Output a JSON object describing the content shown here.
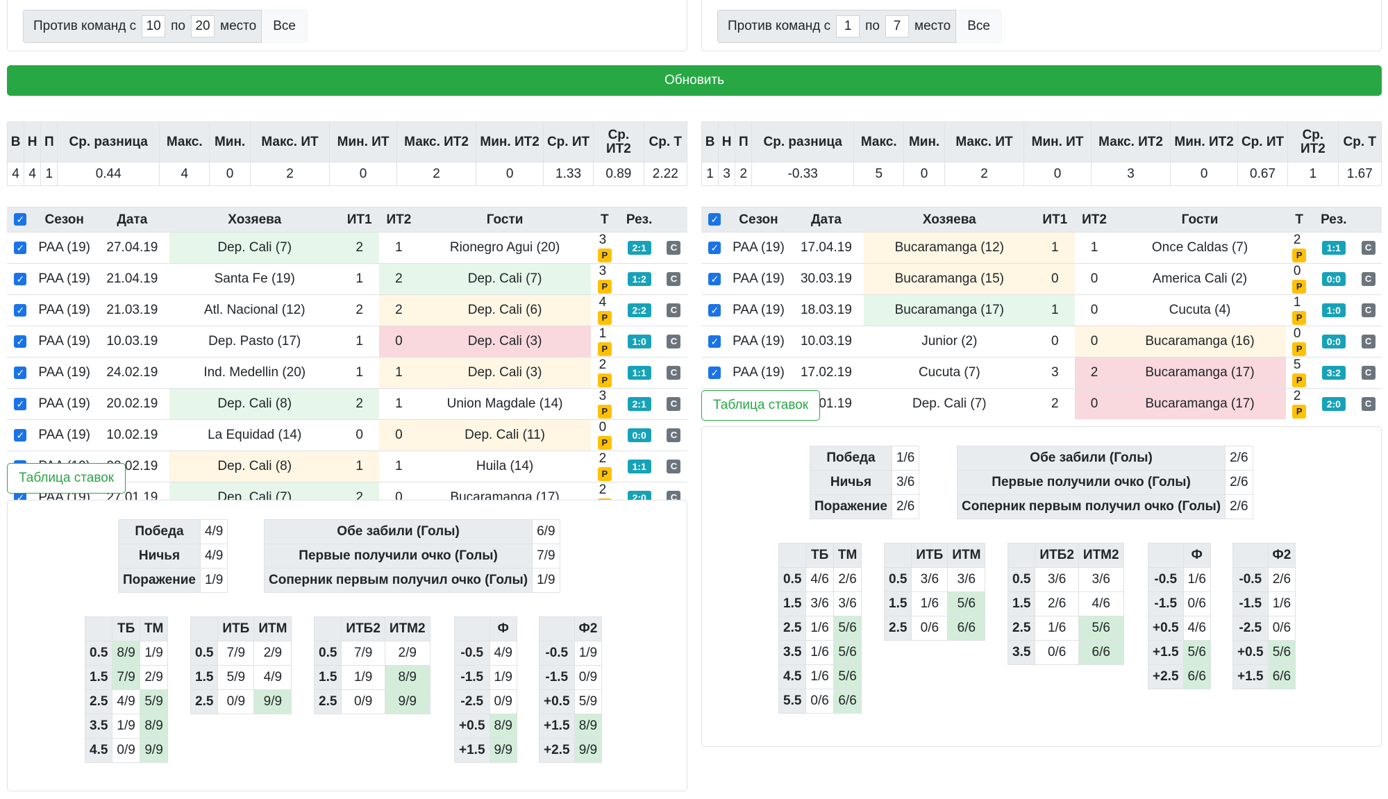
{
  "update_label": "Обновить",
  "bets_label": "Таблица ставок",
  "colors": {
    "green": "#28a745",
    "badge_p": "#ffc107",
    "badge_score": "#17a2b8",
    "badge_c": "#6c757d"
  },
  "stats_headers": [
    "В",
    "Н",
    "П",
    "Ср. разница",
    "Макс.",
    "Мин.",
    "Макс. ИТ",
    "Мин. ИТ",
    "Макс. ИТ2",
    "Мин. ИТ2",
    "Ср. ИТ",
    "Ср. ИТ2",
    "Ср. Т"
  ],
  "match_headers": [
    "",
    "Сезон",
    "Дата",
    "Хозяева",
    "ИТ1",
    "ИТ2",
    "Гости",
    "Т",
    "Рез.",
    ""
  ],
  "results_labels": [
    "Победа",
    "Ничья",
    "Поражение"
  ],
  "goals_labels": [
    "Обе забили (Голы)",
    "Первые получили очко (Голы)",
    "Соперник первым получил очко (Голы)"
  ],
  "left": {
    "filter": {
      "prefix": "Против команд с",
      "from": "10",
      "mid": "по",
      "to": "20",
      "suffix": "место",
      "all": "Все"
    },
    "stats": [
      "4",
      "4",
      "1",
      "0.44",
      "4",
      "0",
      "2",
      "0",
      "2",
      "0",
      "1.33",
      "0.89",
      "2.22"
    ],
    "matches": [
      {
        "season": "PAA (19)",
        "date": "27.04.19",
        "home": "Dep. Cali (7)",
        "it1": "2",
        "it2": "1",
        "away": "Rionegro Agui (20)",
        "t": "3",
        "p": "P",
        "score": "2:1",
        "c": "C",
        "hl": "home",
        "hlc": "hl-green"
      },
      {
        "season": "PAA (19)",
        "date": "21.04.19",
        "home": "Santa Fe (19)",
        "it1": "1",
        "it2": "2",
        "away": "Dep. Cali (7)",
        "t": "3",
        "p": "P",
        "score": "1:2",
        "c": "C",
        "hl": "away",
        "hlc": "hl-green"
      },
      {
        "season": "PAA (19)",
        "date": "21.03.19",
        "home": "Atl. Nacional (12)",
        "it1": "2",
        "it2": "2",
        "away": "Dep. Cali (6)",
        "t": "4",
        "p": "P",
        "score": "2:2",
        "c": "C",
        "hl": "away",
        "hlc": "hl-yellow"
      },
      {
        "season": "PAA (19)",
        "date": "10.03.19",
        "home": "Dep. Pasto (17)",
        "it1": "1",
        "it2": "0",
        "away": "Dep. Cali (3)",
        "t": "1",
        "p": "P",
        "score": "1:0",
        "c": "C",
        "hl": "away",
        "hlc": "hl-red"
      },
      {
        "season": "PAA (19)",
        "date": "24.02.19",
        "home": "Ind. Medellin (20)",
        "it1": "1",
        "it2": "1",
        "away": "Dep. Cali (3)",
        "t": "2",
        "p": "P",
        "score": "1:1",
        "c": "C",
        "hl": "away",
        "hlc": "hl-yellow"
      },
      {
        "season": "PAA (19)",
        "date": "20.02.19",
        "home": "Dep. Cali (8)",
        "it1": "2",
        "it2": "1",
        "away": "Union Magdale (14)",
        "t": "3",
        "p": "P",
        "score": "2:1",
        "c": "C",
        "hl": "home",
        "hlc": "hl-green"
      },
      {
        "season": "PAA (19)",
        "date": "10.02.19",
        "home": "La Equidad (14)",
        "it1": "0",
        "it2": "0",
        "away": "Dep. Cali (11)",
        "t": "0",
        "p": "P",
        "score": "0:0",
        "c": "C",
        "hl": "away",
        "hlc": "hl-yellow"
      },
      {
        "season": "PAA (19)",
        "date": "02.02.19",
        "home": "Dep. Cali (8)",
        "it1": "1",
        "it2": "1",
        "away": "Huila (14)",
        "t": "2",
        "p": "P",
        "score": "1:1",
        "c": "C",
        "hl": "home",
        "hlc": "hl-yellow"
      },
      {
        "season": "PAA (19)",
        "date": "27.01.19",
        "home": "Dep. Cali (7)",
        "it1": "2",
        "it2": "0",
        "away": "Bucaramanga (17)",
        "t": "2",
        "p": "P",
        "score": "2:0",
        "c": "C",
        "hl": "home",
        "hlc": "hl-green"
      }
    ],
    "results": [
      "4/9",
      "4/9",
      "1/9"
    ],
    "goals": [
      "6/9",
      "7/9",
      "1/9"
    ],
    "mini": [
      {
        "h": [
          "",
          "ТБ",
          "ТМ"
        ],
        "rows": [
          [
            "0.5",
            "8/9",
            "1/9"
          ],
          [
            "1.5",
            "7/9",
            "2/9"
          ],
          [
            "2.5",
            "4/9",
            "5/9"
          ],
          [
            "3.5",
            "1/9",
            "8/9"
          ],
          [
            "4.5",
            "0/9",
            "9/9"
          ]
        ],
        "g": [
          [
            1
          ],
          [
            1
          ],
          [
            2
          ],
          [
            2
          ],
          [
            2
          ]
        ]
      },
      {
        "h": [
          "",
          "ИТБ",
          "ИТМ"
        ],
        "rows": [
          [
            "0.5",
            "7/9",
            "2/9"
          ],
          [
            "1.5",
            "5/9",
            "4/9"
          ],
          [
            "2.5",
            "0/9",
            "9/9"
          ]
        ],
        "g": [
          [],
          [],
          [
            2
          ]
        ]
      },
      {
        "h": [
          "",
          "ИТБ2",
          "ИТМ2"
        ],
        "rows": [
          [
            "0.5",
            "7/9",
            "2/9"
          ],
          [
            "1.5",
            "1/9",
            "8/9"
          ],
          [
            "2.5",
            "0/9",
            "9/9"
          ]
        ],
        "g": [
          [],
          [
            2
          ],
          [
            2
          ]
        ]
      },
      {
        "h": [
          "",
          "Ф"
        ],
        "rows": [
          [
            "-0.5",
            "4/9"
          ],
          [
            "-1.5",
            "1/9"
          ],
          [
            "-2.5",
            "0/9"
          ],
          [
            "+0.5",
            "8/9"
          ],
          [
            "+1.5",
            "9/9"
          ]
        ],
        "g": [
          [],
          [],
          [],
          [
            1
          ],
          [
            1
          ]
        ]
      },
      {
        "h": [
          "",
          "Ф2"
        ],
        "rows": [
          [
            "-0.5",
            "1/9"
          ],
          [
            "-1.5",
            "0/9"
          ],
          [
            "+0.5",
            "5/9"
          ],
          [
            "+1.5",
            "8/9"
          ],
          [
            "+2.5",
            "9/9"
          ]
        ],
        "g": [
          [],
          [],
          [],
          [
            1
          ],
          [
            1
          ]
        ]
      }
    ]
  },
  "right": {
    "filter": {
      "prefix": "Против команд с",
      "from": "1",
      "mid": "по",
      "to": "7",
      "suffix": "место",
      "all": "Все"
    },
    "stats": [
      "1",
      "3",
      "2",
      "-0.33",
      "5",
      "0",
      "2",
      "0",
      "3",
      "0",
      "0.67",
      "1",
      "1.67"
    ],
    "matches": [
      {
        "season": "PAA (19)",
        "date": "17.04.19",
        "home": "Bucaramanga (12)",
        "it1": "1",
        "it2": "1",
        "away": "Once Caldas (7)",
        "t": "2",
        "p": "P",
        "score": "1:1",
        "c": "C",
        "hl": "home",
        "hlc": "hl-yellow"
      },
      {
        "season": "PAA (19)",
        "date": "30.03.19",
        "home": "Bucaramanga (15)",
        "it1": "0",
        "it2": "0",
        "away": "America Cali (2)",
        "t": "0",
        "p": "P",
        "score": "0:0",
        "c": "C",
        "hl": "home",
        "hlc": "hl-yellow"
      },
      {
        "season": "PAA (19)",
        "date": "18.03.19",
        "home": "Bucaramanga (17)",
        "it1": "1",
        "it2": "0",
        "away": "Cucuta (4)",
        "t": "1",
        "p": "P",
        "score": "1:0",
        "c": "C",
        "hl": "home",
        "hlc": "hl-green"
      },
      {
        "season": "PAA (19)",
        "date": "10.03.19",
        "home": "Junior (2)",
        "it1": "0",
        "it2": "0",
        "away": "Bucaramanga (16)",
        "t": "0",
        "p": "P",
        "score": "0:0",
        "c": "C",
        "hl": "away",
        "hlc": "hl-yellow"
      },
      {
        "season": "PAA (19)",
        "date": "17.02.19",
        "home": "Cucuta (7)",
        "it1": "3",
        "it2": "2",
        "away": "Bucaramanga (17)",
        "t": "5",
        "p": "P",
        "score": "3:2",
        "c": "C",
        "hl": "away",
        "hlc": "hl-red"
      },
      {
        "season": "PAA (19)",
        "date": "27.01.19",
        "home": "Dep. Cali (7)",
        "it1": "2",
        "it2": "0",
        "away": "Bucaramanga (17)",
        "t": "2",
        "p": "P",
        "score": "2:0",
        "c": "C",
        "hl": "away",
        "hlc": "hl-red"
      }
    ],
    "results": [
      "1/6",
      "3/6",
      "2/6"
    ],
    "goals": [
      "2/6",
      "2/6",
      "2/6"
    ],
    "mini": [
      {
        "h": [
          "",
          "ТБ",
          "ТМ"
        ],
        "rows": [
          [
            "0.5",
            "4/6",
            "2/6"
          ],
          [
            "1.5",
            "3/6",
            "3/6"
          ],
          [
            "2.5",
            "1/6",
            "5/6"
          ],
          [
            "3.5",
            "1/6",
            "5/6"
          ],
          [
            "4.5",
            "1/6",
            "5/6"
          ],
          [
            "5.5",
            "0/6",
            "6/6"
          ]
        ],
        "g": [
          [],
          [],
          [
            2
          ],
          [
            2
          ],
          [
            2
          ],
          [
            2
          ]
        ]
      },
      {
        "h": [
          "",
          "ИТБ",
          "ИТМ"
        ],
        "rows": [
          [
            "0.5",
            "3/6",
            "3/6"
          ],
          [
            "1.5",
            "1/6",
            "5/6"
          ],
          [
            "2.5",
            "0/6",
            "6/6"
          ]
        ],
        "g": [
          [],
          [
            2
          ],
          [
            2
          ]
        ]
      },
      {
        "h": [
          "",
          "ИТБ2",
          "ИТМ2"
        ],
        "rows": [
          [
            "0.5",
            "3/6",
            "3/6"
          ],
          [
            "1.5",
            "2/6",
            "4/6"
          ],
          [
            "2.5",
            "1/6",
            "5/6"
          ],
          [
            "3.5",
            "0/6",
            "6/6"
          ]
        ],
        "g": [
          [],
          [],
          [
            2
          ],
          [
            2
          ]
        ]
      },
      {
        "h": [
          "",
          "Ф"
        ],
        "rows": [
          [
            "-0.5",
            "1/6"
          ],
          [
            "-1.5",
            "0/6"
          ],
          [
            "+0.5",
            "4/6"
          ],
          [
            "+1.5",
            "5/6"
          ],
          [
            "+2.5",
            "6/6"
          ]
        ],
        "g": [
          [],
          [],
          [],
          [
            1
          ],
          [
            1
          ]
        ]
      },
      {
        "h": [
          "",
          "Ф2"
        ],
        "rows": [
          [
            "-0.5",
            "2/6"
          ],
          [
            "-1.5",
            "1/6"
          ],
          [
            "-2.5",
            "0/6"
          ],
          [
            "+0.5",
            "5/6"
          ],
          [
            "+1.5",
            "6/6"
          ]
        ],
        "g": [
          [],
          [],
          [],
          [
            1
          ],
          [
            1
          ]
        ]
      }
    ]
  }
}
